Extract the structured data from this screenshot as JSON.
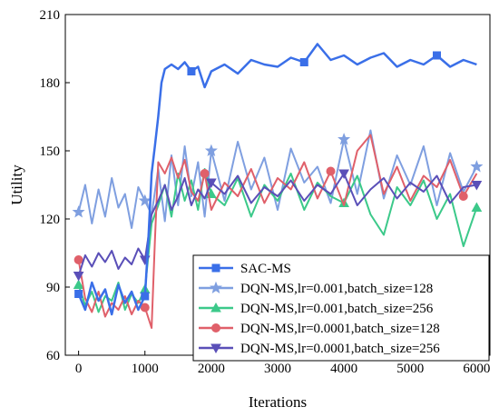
{
  "chart_data": {
    "type": "line",
    "xlabel": "Iterations",
    "ylabel": "Utility",
    "xlim": [
      -200,
      6200
    ],
    "ylim": [
      60,
      210
    ],
    "xticks": [
      0,
      1000,
      2000,
      3000,
      4000,
      5000,
      6000
    ],
    "yticks": [
      60,
      90,
      120,
      150,
      180,
      210
    ],
    "xtick_labels": [
      "0",
      "1000",
      "2000",
      "3000",
      "4000",
      "5000",
      "6000"
    ],
    "ytick_labels": [
      "60",
      "90",
      "120",
      "150",
      "180",
      "210"
    ],
    "legend_position": "bottom-right",
    "series": [
      {
        "name": "SAC-MS",
        "color": "#3a6fe8",
        "marker": "square",
        "x": [
          0,
          100,
          200,
          300,
          400,
          500,
          600,
          700,
          800,
          900,
          1000,
          1050,
          1100,
          1150,
          1200,
          1250,
          1300,
          1400,
          1500,
          1600,
          1700,
          1800,
          1900,
          2000,
          2200,
          2400,
          2600,
          2800,
          3000,
          3200,
          3400,
          3600,
          3800,
          4000,
          4200,
          4400,
          4600,
          4800,
          5000,
          5200,
          5400,
          5600,
          5800,
          6000
        ],
        "y": [
          87,
          80,
          92,
          84,
          89,
          78,
          91,
          83,
          88,
          80,
          86,
          110,
          140,
          152,
          165,
          180,
          186,
          188,
          186,
          189,
          185,
          187,
          178,
          185,
          188,
          184,
          190,
          188,
          187,
          191,
          189,
          197,
          190,
          192,
          188,
          191,
          193,
          187,
          190,
          188,
          192,
          187,
          190,
          188
        ]
      },
      {
        "name": "DQN-MS,lr=0.001,batch_size=128",
        "color": "#7f9fe0",
        "marker": "star",
        "x": [
          0,
          100,
          200,
          300,
          400,
          500,
          600,
          700,
          800,
          900,
          1000,
          1100,
          1200,
          1300,
          1400,
          1500,
          1600,
          1700,
          1800,
          1900,
          2000,
          2200,
          2400,
          2600,
          2800,
          3000,
          3200,
          3400,
          3600,
          3800,
          4000,
          4200,
          4400,
          4600,
          4800,
          5000,
          5200,
          5400,
          5600,
          5800,
          6000
        ],
        "y": [
          123,
          135,
          118,
          133,
          121,
          138,
          125,
          131,
          116,
          134,
          128,
          122,
          142,
          119,
          148,
          126,
          152,
          130,
          145,
          121,
          150,
          128,
          154,
          133,
          147,
          124,
          151,
          136,
          143,
          127,
          155,
          131,
          159,
          129,
          148,
          135,
          152,
          126,
          149,
          132,
          143
        ]
      },
      {
        "name": "DQN-MS,lr=0.001,batch_size=256",
        "color": "#3cc98a",
        "marker": "triangle",
        "x": [
          0,
          100,
          200,
          300,
          400,
          500,
          600,
          700,
          800,
          900,
          1000,
          1100,
          1200,
          1300,
          1400,
          1500,
          1600,
          1700,
          1800,
          1900,
          2000,
          2200,
          2400,
          2600,
          2800,
          3000,
          3200,
          3400,
          3600,
          3800,
          4000,
          4200,
          4400,
          4600,
          4800,
          5000,
          5200,
          5400,
          5600,
          5800,
          6000
        ],
        "y": [
          91,
          82,
          88,
          79,
          86,
          84,
          92,
          80,
          87,
          83,
          89,
          118,
          126,
          135,
          121,
          140,
          128,
          137,
          124,
          142,
          131,
          126,
          138,
          121,
          135,
          128,
          140,
          124,
          136,
          130,
          127,
          139,
          122,
          113,
          134,
          126,
          137,
          120,
          131,
          108,
          125
        ]
      },
      {
        "name": "DQN-MS,lr=0.0001,batch_size=128",
        "color": "#e0606a",
        "marker": "circle",
        "x": [
          0,
          100,
          200,
          300,
          400,
          500,
          600,
          700,
          800,
          900,
          1000,
          1100,
          1150,
          1200,
          1300,
          1400,
          1500,
          1600,
          1700,
          1800,
          1900,
          2000,
          2200,
          2400,
          2600,
          2800,
          3000,
          3200,
          3400,
          3600,
          3800,
          4000,
          4200,
          4400,
          4600,
          4800,
          5000,
          5200,
          5400,
          5600,
          5800,
          6000
        ],
        "y": [
          102,
          85,
          79,
          88,
          77,
          83,
          80,
          86,
          78,
          84,
          81,
          72,
          110,
          145,
          140,
          147,
          138,
          146,
          132,
          128,
          140,
          124,
          136,
          130,
          142,
          127,
          138,
          133,
          145,
          129,
          141,
          126,
          150,
          157,
          131,
          143,
          128,
          139,
          134,
          146,
          130,
          140
        ]
      },
      {
        "name": "DQN-MS,lr=0.0001,batch_size=256",
        "color": "#5a4fb8",
        "marker": "triangle-down",
        "x": [
          0,
          100,
          200,
          300,
          400,
          500,
          600,
          700,
          800,
          900,
          1000,
          1100,
          1200,
          1300,
          1400,
          1500,
          1600,
          1700,
          1800,
          1900,
          2000,
          2200,
          2400,
          2600,
          2800,
          3000,
          3200,
          3400,
          3600,
          3800,
          4000,
          4200,
          4400,
          4600,
          4800,
          5000,
          5200,
          5400,
          5600,
          5800,
          6000
        ],
        "y": [
          95,
          104,
          99,
          105,
          101,
          106,
          98,
          103,
          100,
          107,
          102,
          122,
          128,
          135,
          124,
          130,
          138,
          126,
          133,
          129,
          136,
          131,
          139,
          127,
          134,
          130,
          137,
          128,
          135,
          131,
          140,
          126,
          133,
          138,
          129,
          136,
          132,
          139,
          127,
          134,
          135
        ]
      }
    ]
  }
}
